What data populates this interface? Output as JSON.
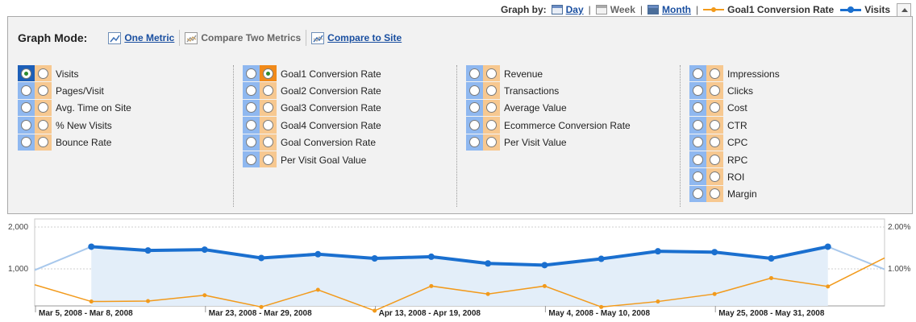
{
  "graph_by": {
    "label": "Graph by:",
    "options": [
      {
        "label": "Day",
        "icon": "calendar-day-icon",
        "link": true
      },
      {
        "label": "Week",
        "icon": "calendar-week-icon",
        "link": false
      },
      {
        "label": "Month",
        "icon": "calendar-month-icon",
        "link": true
      }
    ],
    "legend": [
      {
        "label": "Goal1 Conversion Rate",
        "color": "#f29a1b"
      },
      {
        "label": "Visits",
        "color": "#1a6fcf"
      }
    ]
  },
  "graph_mode": {
    "title": "Graph Mode:",
    "options": [
      {
        "label": "One Metric",
        "active": true
      },
      {
        "label": "Compare Two Metrics",
        "active": false
      },
      {
        "label": "Compare to Site",
        "active": true
      }
    ]
  },
  "metric_columns": [
    {
      "items": [
        {
          "label": "Visits",
          "left_checked": true,
          "right_checked": false
        },
        {
          "label": "Pages/Visit",
          "left_checked": false,
          "right_checked": false
        },
        {
          "label": "Avg. Time on Site",
          "left_checked": false,
          "right_checked": false
        },
        {
          "label": "% New Visits",
          "left_checked": false,
          "right_checked": false
        },
        {
          "label": "Bounce Rate",
          "left_checked": false,
          "right_checked": false
        }
      ]
    },
    {
      "items": [
        {
          "label": "Goal1 Conversion Rate",
          "left_checked": false,
          "right_checked": true
        },
        {
          "label": "Goal2 Conversion Rate",
          "left_checked": false,
          "right_checked": false
        },
        {
          "label": "Goal3 Conversion Rate",
          "left_checked": false,
          "right_checked": false
        },
        {
          "label": "Goal4 Conversion Rate",
          "left_checked": false,
          "right_checked": false
        },
        {
          "label": "Goal Conversion Rate",
          "left_checked": false,
          "right_checked": false
        },
        {
          "label": "Per Visit Goal Value",
          "left_checked": false,
          "right_checked": false
        }
      ]
    },
    {
      "items": [
        {
          "label": "Revenue",
          "left_checked": false,
          "right_checked": false
        },
        {
          "label": "Transactions",
          "left_checked": false,
          "right_checked": false
        },
        {
          "label": "Average Value",
          "left_checked": false,
          "right_checked": false
        },
        {
          "label": "Ecommerce Conversion Rate",
          "left_checked": false,
          "right_checked": false
        },
        {
          "label": "Per Visit Value",
          "left_checked": false,
          "right_checked": false
        }
      ]
    },
    {
      "items": [
        {
          "label": "Impressions",
          "left_checked": false,
          "right_checked": false
        },
        {
          "label": "Clicks",
          "left_checked": false,
          "right_checked": false
        },
        {
          "label": "Cost",
          "left_checked": false,
          "right_checked": false
        },
        {
          "label": "CTR",
          "left_checked": false,
          "right_checked": false
        },
        {
          "label": "CPC",
          "left_checked": false,
          "right_checked": false
        },
        {
          "label": "RPC",
          "left_checked": false,
          "right_checked": false
        },
        {
          "label": "ROI",
          "left_checked": false,
          "right_checked": false
        },
        {
          "label": "Margin",
          "left_checked": false,
          "right_checked": false
        }
      ]
    }
  ],
  "chart_data": {
    "type": "line",
    "left_axis": {
      "ticks": [
        "2,000",
        "1,000"
      ],
      "tick_values": [
        2000,
        1000
      ],
      "ylim": [
        0,
        2000
      ]
    },
    "right_axis": {
      "ticks": [
        "2.00%",
        "1.00%"
      ],
      "tick_values": [
        2.0,
        1.0
      ],
      "ylim": [
        0,
        2.0
      ]
    },
    "x_labels": [
      "Mar 5, 2008 - Mar 8, 2008",
      "Mar 23, 2008 - Mar 29, 2008",
      "Apr 13, 2008 - Apr 19, 2008",
      "May 4, 2008 - May 10, 2008",
      "May 25, 2008 - May 31, 2008"
    ],
    "grid": true,
    "series": [
      {
        "name": "Visits",
        "axis": "left",
        "color": "#1a6fcf",
        "values": [
          970,
          1530,
          1440,
          1460,
          1260,
          1350,
          1250,
          1290,
          1130,
          1090,
          1240,
          1420,
          1400,
          1250,
          1530,
          990
        ]
      },
      {
        "name": "Goal1 Conversion Rate",
        "axis": "right",
        "color": "#f29a1b",
        "values": [
          0.62,
          0.22,
          0.23,
          0.37,
          0.09,
          0.5,
          0.0,
          0.59,
          0.4,
          0.59,
          0.09,
          0.22,
          0.4,
          0.78,
          0.58,
          1.26
        ]
      }
    ]
  }
}
